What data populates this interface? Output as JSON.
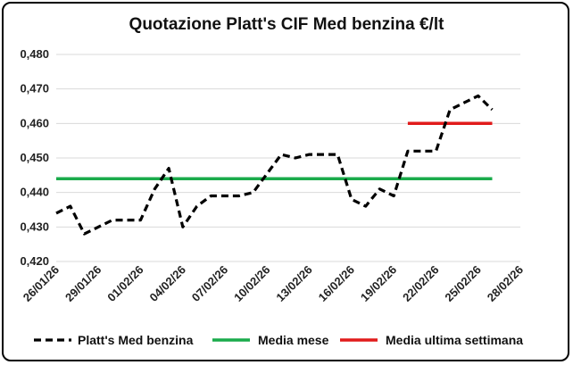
{
  "chart_data": {
    "type": "line",
    "title": "Quotazione Platt's CIF Med benzina €/lt",
    "xlabel": "",
    "ylabel": "",
    "ylim": [
      0.42,
      0.48
    ],
    "y_ticks": [
      "0,420",
      "0,430",
      "0,440",
      "0,450",
      "0,460",
      "0,470",
      "0,480"
    ],
    "x_ticks": [
      "26/01/26",
      "29/01/26",
      "01/02/26",
      "04/02/26",
      "07/02/26",
      "10/02/26",
      "13/02/26",
      "16/02/26",
      "19/02/26",
      "22/02/26",
      "25/02/26",
      "28/02/26"
    ],
    "x_range": [
      "2026-01-26",
      "2026-02-28"
    ],
    "grid": "horizontal",
    "legend_position": "bottom",
    "series": [
      {
        "name": "Platt's Med benzina",
        "style": "dashed",
        "color": "#000000",
        "points": [
          {
            "x": "2026-01-26",
            "y": 0.434
          },
          {
            "x": "2026-01-27",
            "y": 0.436
          },
          {
            "x": "2026-01-28",
            "y": 0.428
          },
          {
            "x": "2026-01-30",
            "y": 0.432
          },
          {
            "x": "2026-02-01",
            "y": 0.432
          },
          {
            "x": "2026-02-02",
            "y": 0.441
          },
          {
            "x": "2026-02-03",
            "y": 0.447
          },
          {
            "x": "2026-02-04",
            "y": 0.43
          },
          {
            "x": "2026-02-05",
            "y": 0.436
          },
          {
            "x": "2026-02-06",
            "y": 0.439
          },
          {
            "x": "2026-02-08",
            "y": 0.439
          },
          {
            "x": "2026-02-09",
            "y": 0.44
          },
          {
            "x": "2026-02-11",
            "y": 0.451
          },
          {
            "x": "2026-02-12",
            "y": 0.45
          },
          {
            "x": "2026-02-13",
            "y": 0.451
          },
          {
            "x": "2026-02-15",
            "y": 0.451
          },
          {
            "x": "2026-02-16",
            "y": 0.438
          },
          {
            "x": "2026-02-17",
            "y": 0.436
          },
          {
            "x": "2026-02-18",
            "y": 0.441
          },
          {
            "x": "2026-02-19",
            "y": 0.439
          },
          {
            "x": "2026-02-20",
            "y": 0.452
          },
          {
            "x": "2026-02-22",
            "y": 0.452
          },
          {
            "x": "2026-02-23",
            "y": 0.464
          },
          {
            "x": "2026-02-24",
            "y": 0.466
          },
          {
            "x": "2026-02-25",
            "y": 0.468
          },
          {
            "x": "2026-02-26",
            "y": 0.464
          }
        ]
      },
      {
        "name": "Media mese",
        "style": "solid",
        "color": "#1aab4b",
        "points": [
          {
            "x": "2026-01-26",
            "y": 0.444
          },
          {
            "x": "2026-02-26",
            "y": 0.444
          }
        ]
      },
      {
        "name": "Media ultima settimana",
        "style": "solid",
        "color": "#e11b1b",
        "points": [
          {
            "x": "2026-02-20",
            "y": 0.46
          },
          {
            "x": "2026-02-26",
            "y": 0.46
          }
        ]
      }
    ]
  }
}
